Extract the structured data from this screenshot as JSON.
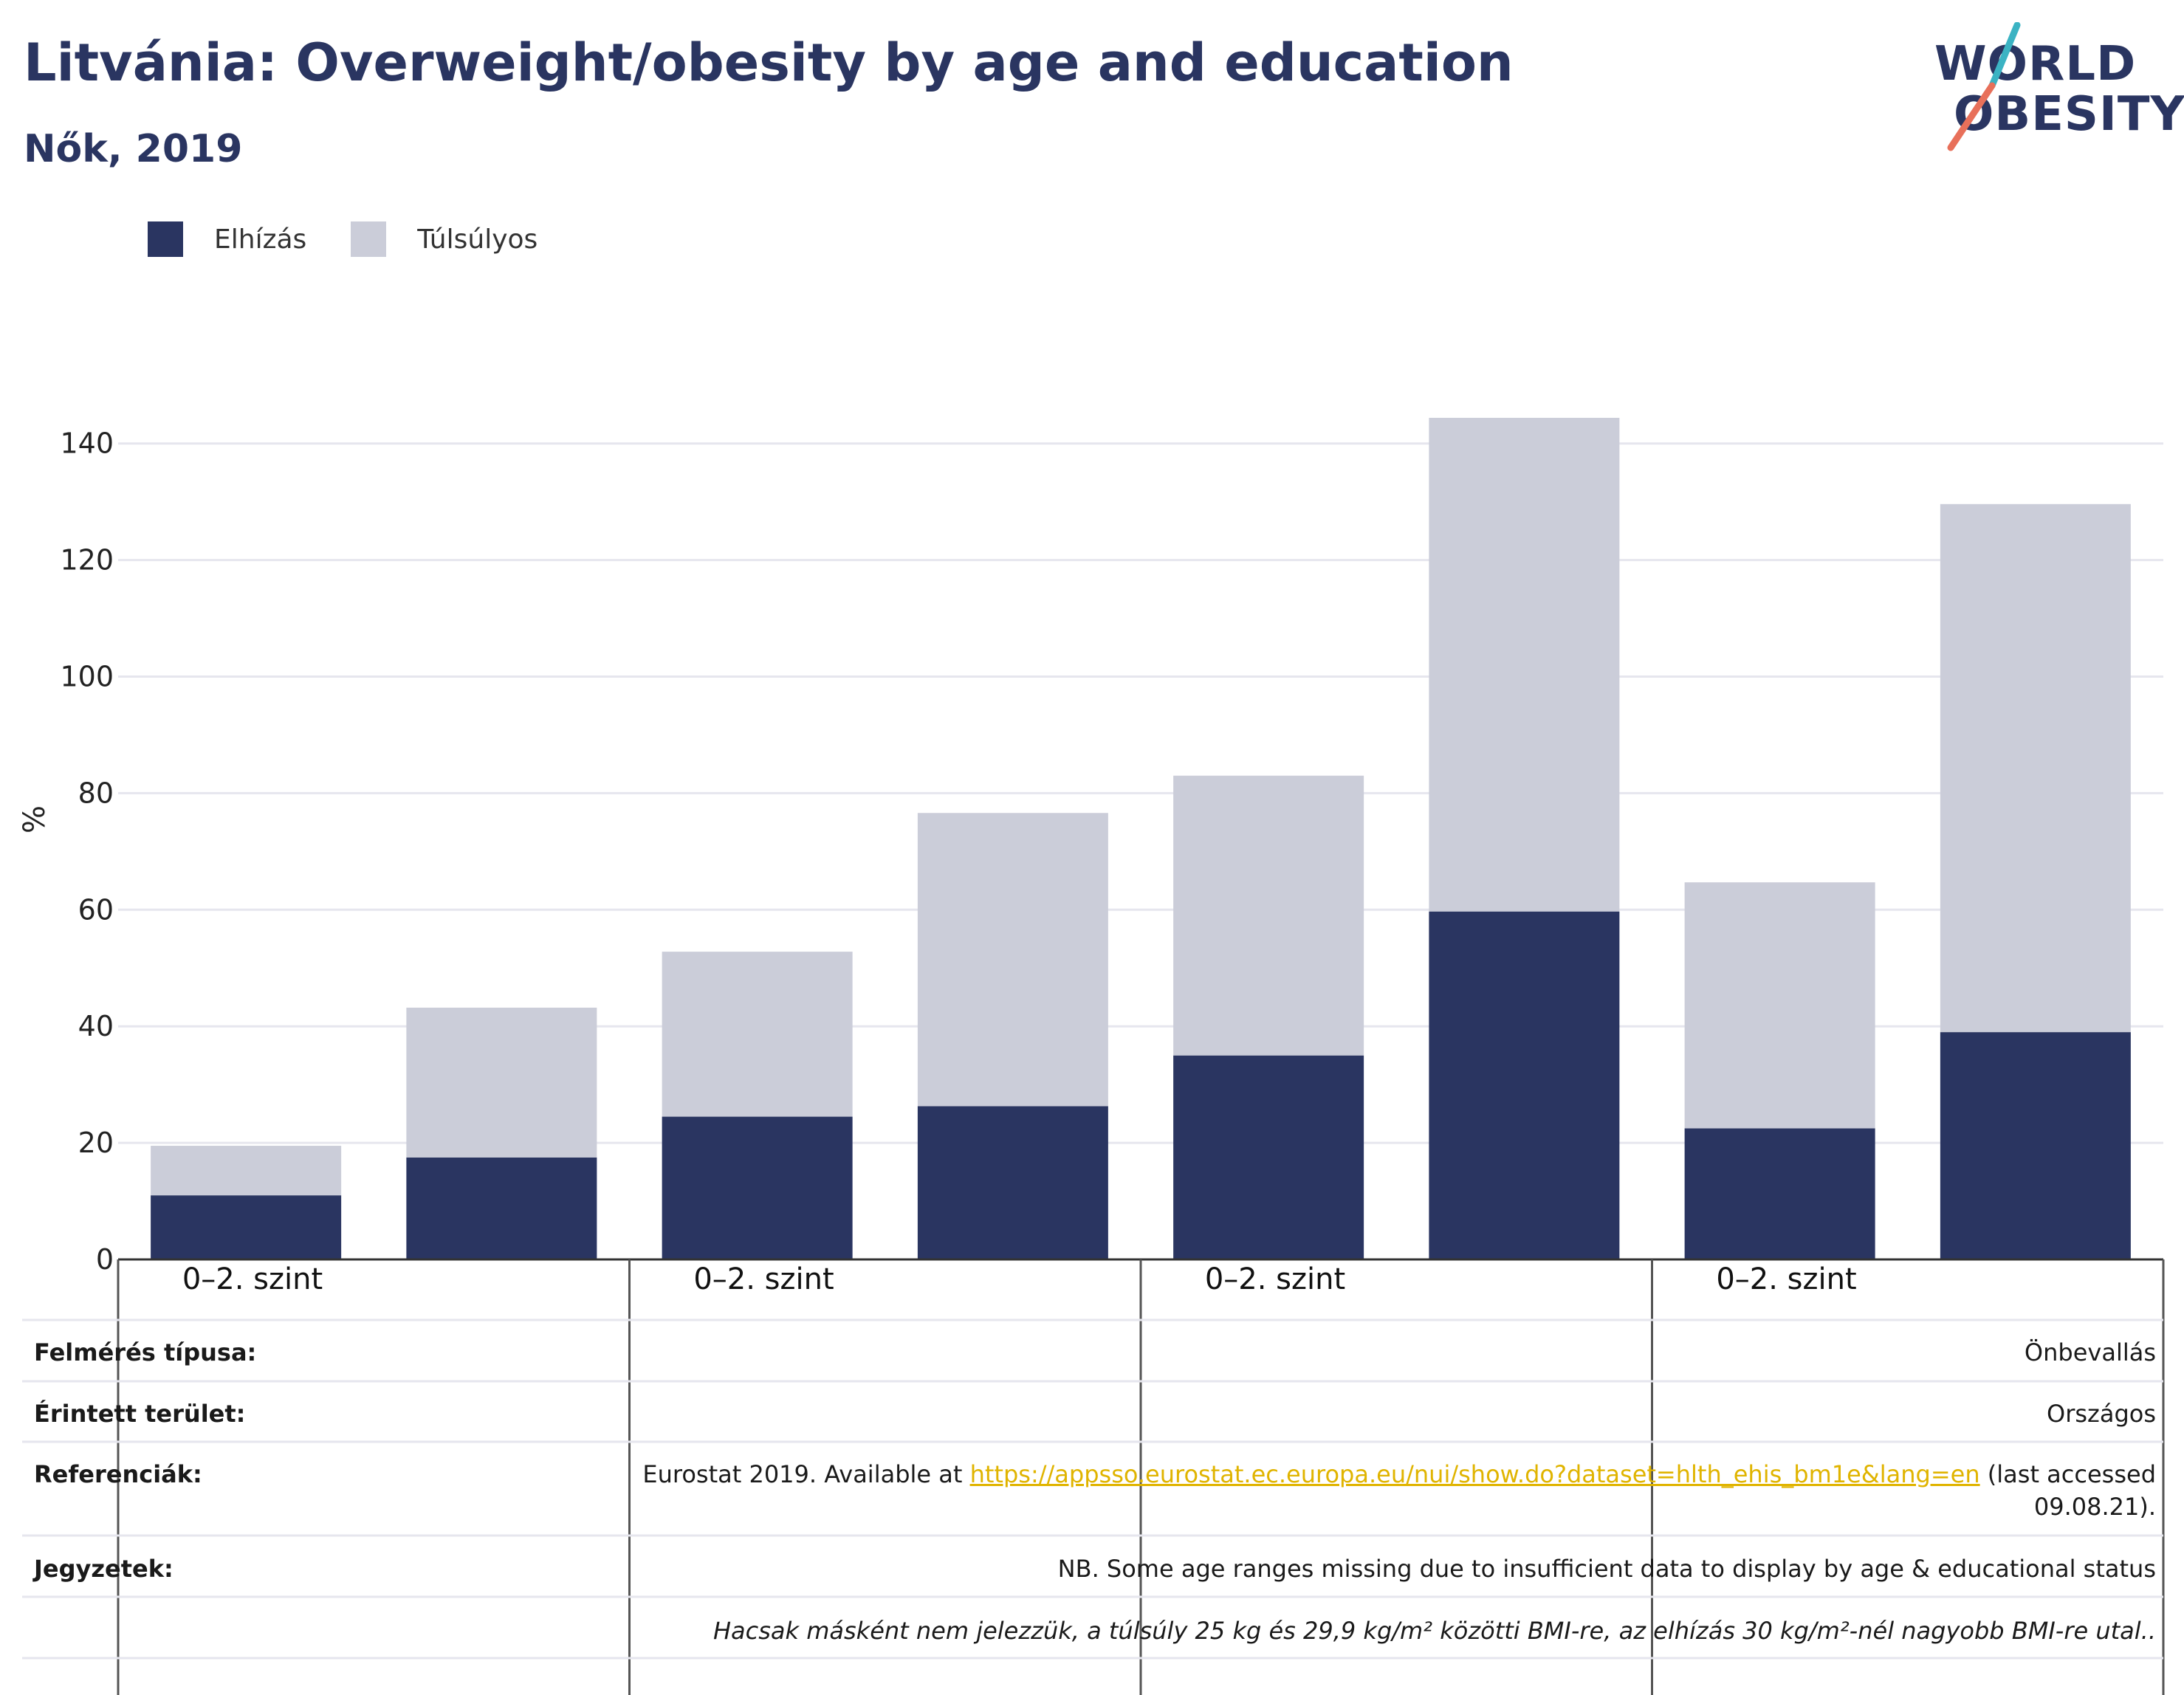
{
  "header": {
    "title": "Litvánia: Overweight/obesity by age and education",
    "subtitle": "Nők, 2019"
  },
  "logo": {
    "line1": "WORLD",
    "line2": "OBESITY"
  },
  "colors": {
    "obesity": "#2a3561",
    "overweight": "#cbcdd9",
    "logo_slash_top": "#3bb3c3",
    "logo_slash_bottom": "#e8705a",
    "link": "#e0b400"
  },
  "chart_data": {
    "type": "bar",
    "stacked": true,
    "ylabel": "%",
    "ylim": [
      0,
      145
    ],
    "yticks": [
      0,
      20,
      40,
      60,
      80,
      100,
      120,
      140
    ],
    "grid": true,
    "legend_position": "top-left",
    "group_labels": [
      "0–2. szint",
      "0–2. szint",
      "0–2. szint",
      "0–2. szint"
    ],
    "bars_per_group": 2,
    "series": [
      {
        "name": "Elhízás",
        "color": "#2a3561",
        "values": [
          11,
          17.5,
          24.5,
          26.3,
          35,
          59.7,
          22.5,
          39
        ]
      },
      {
        "name": "Túlsúlyos",
        "color": "#cbcdd9",
        "values": [
          8.5,
          25.7,
          28.3,
          50.3,
          48,
          84.7,
          42.2,
          90.6
        ]
      }
    ]
  },
  "info": {
    "survey_label": "Felmérés típusa:",
    "survey_value": "Önbevallás",
    "area_label": "Érintett terület:",
    "area_value": "Országos",
    "references_label": "Referenciák:",
    "references_prefix": "Eurostat 2019. Available at ",
    "references_link": "https://appsso.eurostat.ec.europa.eu/nui/show.do?dataset=hlth_ehis_bm1e&lang=en",
    "references_suffix": " (last accessed",
    "references_suffix2": "09.08.21).",
    "notes_label": "Jegyzetek:",
    "notes_value": "NB. Some age ranges missing due to insufficient data to display by age & educational status",
    "footnote": "Hacsak másként nem jelezzük, a túlsúly 25 kg és 29,9 kg/m² közötti BMI-re, az elhízás 30 kg/m²-nél nagyobb BMI-re utal.."
  }
}
